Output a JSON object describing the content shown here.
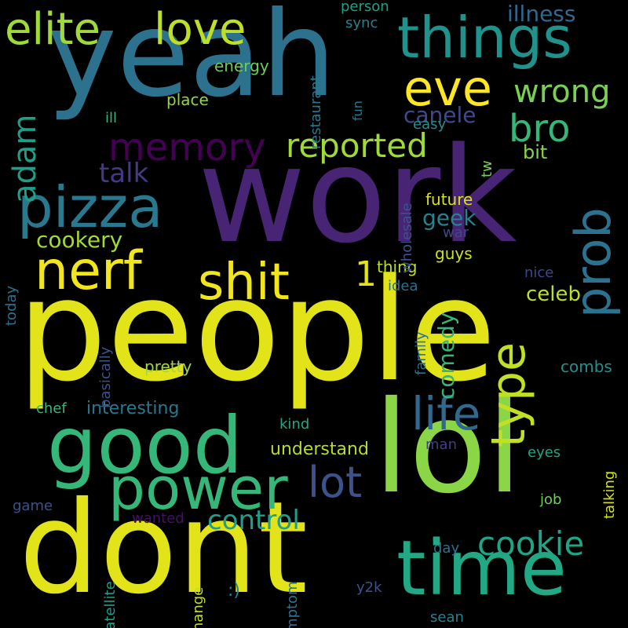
{
  "words": [
    {
      "text": "people",
      "color": "#e2e419",
      "rot": 0
    },
    {
      "text": "work",
      "color": "#482475",
      "rot": 0
    },
    {
      "text": "yeah",
      "color": "#2c728e",
      "rot": 0
    },
    {
      "text": "dont",
      "color": "#e2e419",
      "rot": 0
    },
    {
      "text": "lol",
      "color": "#8bd646",
      "rot": 0
    },
    {
      "text": "time",
      "color": "#22a884",
      "rot": 0
    },
    {
      "text": "good",
      "color": "#35b779",
      "rot": 0
    },
    {
      "text": "things",
      "color": "#21918c",
      "rot": 0
    },
    {
      "text": "power",
      "color": "#35b779",
      "rot": 0
    },
    {
      "text": "pizza",
      "color": "#2a788e",
      "rot": 0
    },
    {
      "text": "prob",
      "color": "#2c728e",
      "rot": -90
    },
    {
      "text": "nerf",
      "color": "#f1e51d",
      "rot": 0
    },
    {
      "text": "shit",
      "color": "#f1e51d",
      "rot": 0
    },
    {
      "text": "love",
      "color": "#bddf26",
      "rot": 0
    },
    {
      "text": "elite",
      "color": "#a0da39",
      "rot": 0
    },
    {
      "text": "type",
      "color": "#c2df23",
      "rot": -90
    },
    {
      "text": "eve",
      "color": "#fde725",
      "rot": 0
    },
    {
      "text": "memory",
      "color": "#440154",
      "rot": 0
    },
    {
      "text": "life",
      "color": "#31688e",
      "rot": 0
    },
    {
      "text": "lot",
      "color": "#3b528b",
      "rot": 0
    },
    {
      "text": "reported",
      "color": "#a0da39",
      "rot": 0
    },
    {
      "text": "cookie",
      "color": "#20a486",
      "rot": 0
    },
    {
      "text": "adam",
      "color": "#1f9e89",
      "rot": -90
    },
    {
      "text": "bro",
      "color": "#35b779",
      "rot": 0
    },
    {
      "text": "wrong",
      "color": "#7ad151",
      "rot": 0
    },
    {
      "text": "1",
      "color": "#e2e419",
      "rot": 0
    },
    {
      "text": "control",
      "color": "#1f9e89",
      "rot": 0
    },
    {
      "text": "talk",
      "color": "#443983",
      "rot": 0
    },
    {
      "text": "cookery",
      "color": "#a0da39",
      "rot": 0
    },
    {
      "text": "illness",
      "color": "#31688e",
      "rot": 0
    },
    {
      "text": "canele",
      "color": "#3e4a89",
      "rot": 0
    },
    {
      "text": "comedy",
      "color": "#35b779",
      "rot": -90
    },
    {
      "text": "celeb",
      "color": "#bddf26",
      "rot": 0
    },
    {
      "text": "bit",
      "color": "#86d549",
      "rot": 0
    },
    {
      "text": "geek",
      "color": "#26828e",
      "rot": 0
    },
    {
      "text": "understand",
      "color": "#b5de2b",
      "rot": 0
    },
    {
      "text": "interesting",
      "color": "#2a788e",
      "rot": 0
    },
    {
      "text": "pretty",
      "color": "#a0da39",
      "rot": 0
    },
    {
      "text": "combs",
      "color": "#21918c",
      "rot": 0
    },
    {
      "text": "thing",
      "color": "#bddf26",
      "rot": 0
    },
    {
      "text": "guys",
      "color": "#d0e11c",
      "rot": 0
    },
    {
      "text": "future",
      "color": "#d8e219",
      "rot": 0
    },
    {
      "text": "energy",
      "color": "#6ccd5a",
      "rot": 0
    },
    {
      "text": "place",
      "color": "#8fd744",
      "rot": 0
    },
    {
      "text": "restaurant",
      "color": "#2a788e",
      "rot": -90
    },
    {
      "text": "person",
      "color": "#1fa187",
      "rot": 0
    },
    {
      "text": "sync",
      "color": "#26828e",
      "rot": 0
    },
    {
      "text": "fun",
      "color": "#2a788e",
      "rot": -90
    },
    {
      "text": "easy",
      "color": "#21918c",
      "rot": 0
    },
    {
      "text": "ill",
      "color": "#35b779",
      "rot": 0
    },
    {
      "text": "tw",
      "color": "#77d153",
      "rot": -90
    },
    {
      "text": "wholesale",
      "color": "#3b528b",
      "rot": -90
    },
    {
      "text": "war",
      "color": "#3e4989",
      "rot": 0
    },
    {
      "text": "nice",
      "color": "#3f4788",
      "rot": 0
    },
    {
      "text": "idea",
      "color": "#2c728e",
      "rot": 0
    },
    {
      "text": "family",
      "color": "#2d708e",
      "rot": -90
    },
    {
      "text": "basically",
      "color": "#3b528b",
      "rot": -90
    },
    {
      "text": "today",
      "color": "#2c728e",
      "rot": -90
    },
    {
      "text": "chef",
      "color": "#35b779",
      "rot": 0
    },
    {
      "text": "kind",
      "color": "#22a884",
      "rot": 0
    },
    {
      "text": "man",
      "color": "#433e85",
      "rot": 0
    },
    {
      "text": "eyes",
      "color": "#20a486",
      "rot": 0
    },
    {
      "text": "job",
      "color": "#6ece58",
      "rot": 0
    },
    {
      "text": "talking",
      "color": "#d2e21b",
      "rot": -90
    },
    {
      "text": "game",
      "color": "#3b528b",
      "rot": 0
    },
    {
      "text": "wanted",
      "color": "#471063",
      "rot": 0
    },
    {
      "text": "satellite",
      "color": "#1f9e89",
      "rot": -90
    },
    {
      "text": "symptom",
      "color": "#2c728e",
      "rot": -90
    },
    {
      "text": "change",
      "color": "#c2df23",
      "rot": -90
    },
    {
      "text": ":)",
      "color": "#26828e",
      "rot": 0
    },
    {
      "text": "day",
      "color": "#2c728e",
      "rot": 0
    },
    {
      "text": "y2k",
      "color": "#3b528b",
      "rot": 0
    },
    {
      "text": "sean",
      "color": "#26828e",
      "rot": 0
    }
  ]
}
